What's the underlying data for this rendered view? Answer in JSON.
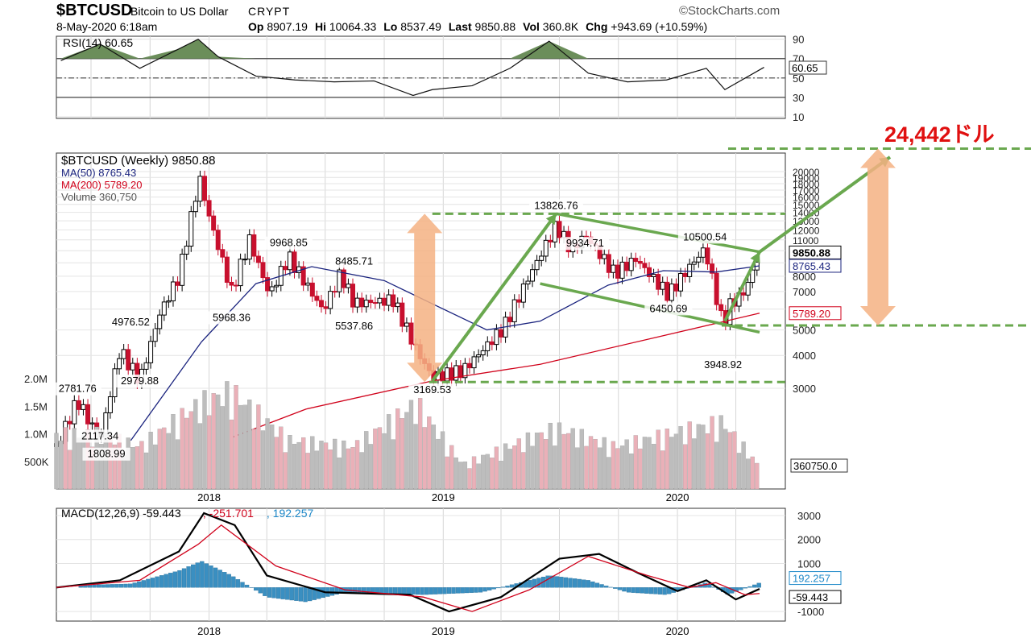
{
  "header": {
    "symbol": "$BTCUSD",
    "name": "Bitcoin to US Dollar",
    "exchange": "CRYPT",
    "brand": "©StockCharts.com",
    "datetime": "8-May-2020 6:18am",
    "ohlc": [
      {
        "label": "Op",
        "value": "8907.19"
      },
      {
        "label": "Hi",
        "value": "10064.33"
      },
      {
        "label": "Lo",
        "value": "8537.49"
      },
      {
        "label": "Last",
        "value": "9850.88"
      },
      {
        "label": "Vol",
        "value": "360.8K"
      },
      {
        "label": "Chg",
        "value": "+943.69 (+10.59%)"
      }
    ]
  },
  "chart_data": [
    {
      "type": "line",
      "panel": "rsi",
      "legend": "RSI(14) 60.65",
      "y_ticks": [
        10,
        30,
        50,
        70,
        90
      ],
      "ylim": [
        0,
        100
      ],
      "reference_lines": [
        30,
        50,
        70
      ],
      "current_label": "60.65",
      "x_dates": [
        "2017-05",
        "2017-07",
        "2017-09",
        "2017-11",
        "2017-12",
        "2018-01",
        "2018-03",
        "2018-05",
        "2018-07",
        "2018-09",
        "2018-11",
        "2018-12",
        "2019-02",
        "2019-04",
        "2019-06",
        "2019-08",
        "2019-10",
        "2019-12",
        "2020-02",
        "2020-03",
        "2020-05"
      ],
      "values": [
        68,
        85,
        60,
        80,
        90,
        72,
        52,
        48,
        46,
        47,
        32,
        38,
        42,
        60,
        88,
        55,
        46,
        48,
        60,
        38,
        61
      ]
    },
    {
      "type": "candlestick",
      "panel": "price",
      "scale": "log",
      "legend": [
        {
          "text": "$BTCUSD (Weekly) 9850.88",
          "color": "#000000"
        },
        {
          "text": "MA(50) 8765.43",
          "color": "#1a237e"
        },
        {
          "text": "MA(200) 5789.20",
          "color": "#d0021b"
        },
        {
          "text": "Volume 360,750",
          "color": "#555555"
        }
      ],
      "y_ticks": [
        3000,
        4000,
        5000,
        6000,
        7000,
        8000,
        9000,
        10000,
        11000,
        12000,
        13000,
        14000,
        15000,
        16000,
        17000,
        18000,
        19000,
        20000
      ],
      "y_tick_labels": [
        "3000",
        "4000",
        "5000",
        "6000",
        "7000",
        "8000",
        "9000",
        "10000",
        "11000",
        "12000",
        "13000",
        "14000",
        "15000",
        "16000",
        "17000",
        "18000",
        "19000",
        "20000"
      ],
      "x_tick_labels": [
        "2018",
        "2019",
        "2020"
      ],
      "price_path": [
        {
          "date": "2017-05-08",
          "close": 1800
        },
        {
          "date": "2017-06-10",
          "close": 2700
        },
        {
          "date": "2017-07-15",
          "close": 1900
        },
        {
          "date": "2017-08-15",
          "close": 4200
        },
        {
          "date": "2017-09-15",
          "close": 3200
        },
        {
          "date": "2017-10-15",
          "close": 5700
        },
        {
          "date": "2017-11-15",
          "close": 8000
        },
        {
          "date": "2017-12-17",
          "close": 19000
        },
        {
          "date": "2018-01-01",
          "close": 13500
        },
        {
          "date": "2018-02-05",
          "close": 7000
        },
        {
          "date": "2018-03-05",
          "close": 11000
        },
        {
          "date": "2018-04-05",
          "close": 6800
        },
        {
          "date": "2018-05-05",
          "close": 9500
        },
        {
          "date": "2018-06-28",
          "close": 5900
        },
        {
          "date": "2018-07-25",
          "close": 8200
        },
        {
          "date": "2018-08-15",
          "close": 6300
        },
        {
          "date": "2018-10-15",
          "close": 6500
        },
        {
          "date": "2018-11-20",
          "close": 4200
        },
        {
          "date": "2018-12-15",
          "close": 3300
        },
        {
          "date": "2019-02-01",
          "close": 3500
        },
        {
          "date": "2019-04-05",
          "close": 5100
        },
        {
          "date": "2019-05-15",
          "close": 8000
        },
        {
          "date": "2019-06-26",
          "close": 12500
        },
        {
          "date": "2019-07-20",
          "close": 10000
        },
        {
          "date": "2019-08-10",
          "close": 11500
        },
        {
          "date": "2019-09-25",
          "close": 8200
        },
        {
          "date": "2019-10-28",
          "close": 9300
        },
        {
          "date": "2019-12-18",
          "close": 6800
        },
        {
          "date": "2020-01-20",
          "close": 8700
        },
        {
          "date": "2020-02-13",
          "close": 10200
        },
        {
          "date": "2020-03-12",
          "close": 5200
        },
        {
          "date": "2020-03-22",
          "close": 6200
        },
        {
          "date": "2020-04-15",
          "close": 7000
        },
        {
          "date": "2020-05-08",
          "close": 9850
        }
      ],
      "ma50": [
        {
          "date": "2017-09-01",
          "close": 1900
        },
        {
          "date": "2017-12-20",
          "close": 4500
        },
        {
          "date": "2018-03-15",
          "close": 7500
        },
        {
          "date": "2018-06-10",
          "close": 8700
        },
        {
          "date": "2018-10-01",
          "close": 7700
        },
        {
          "date": "2018-12-20",
          "close": 6200
        },
        {
          "date": "2019-03-10",
          "close": 5000
        },
        {
          "date": "2019-06-01",
          "close": 5400
        },
        {
          "date": "2019-09-15",
          "close": 7400
        },
        {
          "date": "2019-12-10",
          "close": 8400
        },
        {
          "date": "2020-03-01",
          "close": 8300
        },
        {
          "date": "2020-05-08",
          "close": 8765.43
        }
      ],
      "ma200": [
        {
          "date": "2018-02-05",
          "close": 1950
        },
        {
          "date": "2018-06-01",
          "close": 2500
        },
        {
          "date": "2018-12-15",
          "close": 3200
        },
        {
          "date": "2019-06-01",
          "close": 3700
        },
        {
          "date": "2019-12-01",
          "close": 4700
        },
        {
          "date": "2020-05-08",
          "close": 5789.2
        }
      ],
      "annotations": [
        {
          "date": "2017-06-10",
          "price": 2781.76,
          "text": "2781.76"
        },
        {
          "date": "2017-07-15",
          "price": 2117.34,
          "text": "2117.34"
        },
        {
          "date": "2017-07-25",
          "price": 1808.99,
          "text": "1808.99"
        },
        {
          "date": "2017-09-15",
          "price": 2979.88,
          "text": "2979.88"
        },
        {
          "date": "2017-09-01",
          "price": 4976.52,
          "text": "4976.52"
        },
        {
          "date": "2018-02-05",
          "price": 5968.36,
          "text": "5968.36"
        },
        {
          "date": "2018-05-05",
          "price": 9968.85,
          "text": "9968.85"
        },
        {
          "date": "2018-08-15",
          "price": 8485.71,
          "text": "8485.71"
        },
        {
          "date": "2018-08-15",
          "price": 5537.86,
          "text": "5537.86"
        },
        {
          "date": "2018-12-15",
          "price": 3169.53,
          "text": "3169.53"
        },
        {
          "date": "2019-06-26",
          "price": 13826.76,
          "text": "13826.76"
        },
        {
          "date": "2019-08-10",
          "price": 9934.71,
          "text": "9934.71"
        },
        {
          "date": "2019-12-18",
          "price": 6450.69,
          "text": "6450.69"
        },
        {
          "date": "2020-02-13",
          "price": 10500.54,
          "text": "10500.54"
        },
        {
          "date": "2020-03-12",
          "price": 3948.92,
          "text": "3948.92"
        }
      ],
      "current_labels": [
        {
          "text": "9850.88",
          "value": 9850.88,
          "color": "#000000"
        },
        {
          "text": "8765.43",
          "value": 8765.43,
          "color": "#1a237e"
        },
        {
          "text": "5789.20",
          "value": 5789.2,
          "color": "#d0021b"
        }
      ],
      "overlay": {
        "target_text": "24,442ドル",
        "target_value": 24442,
        "range_levels": [
          13826.76,
          3169.53,
          5200
        ],
        "channel_lines": [
          {
            "from": {
              "date": "2019-06-26",
              "price": 13826.76
            },
            "to": {
              "date": "2020-05-08",
              "price": 9900
            }
          },
          {
            "from": {
              "date": "2019-06-01",
              "price": 7500
            },
            "to": {
              "date": "2020-05-08",
              "price": 4900
            }
          }
        ],
        "arrows": [
          {
            "from": {
              "date": "2018-12-15",
              "price": 3200
            },
            "to": {
              "date": "2019-06-26",
              "price": 13826.76
            }
          },
          {
            "from": {
              "date": "2020-03-15",
              "price": 5400
            },
            "to": {
              "date": "2020-05-08",
              "price": 9900
            }
          },
          {
            "from": {
              "date": "2020-05-08",
              "price": 9900
            },
            "to": {
              "date": "2020-07-10",
              "price": 23500
            }
          }
        ]
      }
    },
    {
      "type": "bar",
      "panel": "volume",
      "y_tick_labels": [
        "500K",
        "1.0M",
        "1.5M",
        "2.0M"
      ],
      "y_ticks": [
        500000,
        1000000,
        1500000,
        2000000
      ],
      "current_label": "360750.0",
      "bars": [
        {
          "date": "2017-07-15",
          "value": 900000
        },
        {
          "date": "2017-09-15",
          "value": 700000
        },
        {
          "date": "2017-12-17",
          "value": 1400000
        },
        {
          "date": "2018-02-05",
          "value": 1600000
        },
        {
          "date": "2018-05-05",
          "value": 800000
        },
        {
          "date": "2018-08-15",
          "value": 700000
        },
        {
          "date": "2018-11-20",
          "value": 1400000
        },
        {
          "date": "2019-02-01",
          "value": 400000
        },
        {
          "date": "2019-06-26",
          "value": 1000000
        },
        {
          "date": "2019-09-25",
          "value": 700000
        },
        {
          "date": "2020-03-12",
          "value": 1100000
        },
        {
          "date": "2020-05-08",
          "value": 360750
        }
      ]
    },
    {
      "type": "line",
      "panel": "macd",
      "legend": [
        {
          "text": "MACD(12,26,9) -59.443",
          "color": "#000000"
        },
        {
          "text": "-251.701",
          "color": "#d0021b"
        },
        {
          "text": "192.257",
          "color": "#1e88c8"
        }
      ],
      "y_ticks": [
        -1000,
        1000,
        2000,
        3000
      ],
      "ylim": [
        -1300,
        3200
      ],
      "x_tick_labels": [
        "2018",
        "2019",
        "2020"
      ],
      "current_labels": [
        {
          "text": "192.257",
          "value": 192.257,
          "color": "#1e88c8"
        },
        {
          "text": "-59.443",
          "value": -59.443,
          "color": "#000000"
        }
      ],
      "series": [
        {
          "name": "MACD",
          "color": "#000000",
          "points": [
            {
              "date": "2017-05-08",
              "value": 0
            },
            {
              "date": "2017-08-15",
              "value": 300
            },
            {
              "date": "2017-11-15",
              "value": 1500
            },
            {
              "date": "2017-12-24",
              "value": 3100
            },
            {
              "date": "2018-02-10",
              "value": 2600
            },
            {
              "date": "2018-04-01",
              "value": 500
            },
            {
              "date": "2018-07-01",
              "value": -200
            },
            {
              "date": "2018-11-10",
              "value": -300
            },
            {
              "date": "2019-01-10",
              "value": -1000
            },
            {
              "date": "2019-04-01",
              "value": -400
            },
            {
              "date": "2019-07-01",
              "value": 1200
            },
            {
              "date": "2019-09-01",
              "value": 1400
            },
            {
              "date": "2019-11-01",
              "value": 600
            },
            {
              "date": "2020-01-01",
              "value": -150
            },
            {
              "date": "2020-02-15",
              "value": 300
            },
            {
              "date": "2020-04-01",
              "value": -500
            },
            {
              "date": "2020-05-08",
              "value": -59.443
            }
          ]
        },
        {
          "name": "Signal",
          "color": "#d0021b",
          "points": [
            {
              "date": "2017-05-08",
              "value": 0
            },
            {
              "date": "2017-09-15",
              "value": 300
            },
            {
              "date": "2017-12-15",
              "value": 1800
            },
            {
              "date": "2018-01-20",
              "value": 2600
            },
            {
              "date": "2018-04-15",
              "value": 900
            },
            {
              "date": "2018-08-01",
              "value": -100
            },
            {
              "date": "2018-12-01",
              "value": -400
            },
            {
              "date": "2019-02-15",
              "value": -1000
            },
            {
              "date": "2019-05-15",
              "value": -100
            },
            {
              "date": "2019-08-15",
              "value": 1300
            },
            {
              "date": "2019-11-15",
              "value": 500
            },
            {
              "date": "2020-01-20",
              "value": 0
            },
            {
              "date": "2020-03-01",
              "value": 200
            },
            {
              "date": "2020-04-15",
              "value": -300
            },
            {
              "date": "2020-05-08",
              "value": -251.701
            }
          ]
        }
      ],
      "histogram": [
        {
          "date": "2017-06-15",
          "value": 100
        },
        {
          "date": "2017-09-01",
          "value": 150
        },
        {
          "date": "2017-11-15",
          "value": 700
        },
        {
          "date": "2017-12-20",
          "value": 1100
        },
        {
          "date": "2018-02-05",
          "value": 500
        },
        {
          "date": "2018-04-01",
          "value": -400
        },
        {
          "date": "2018-06-01",
          "value": -600
        },
        {
          "date": "2018-08-01",
          "value": -200
        },
        {
          "date": "2018-12-01",
          "value": -300
        },
        {
          "date": "2019-03-01",
          "value": -200
        },
        {
          "date": "2019-06-15",
          "value": 500
        },
        {
          "date": "2019-08-15",
          "value": 300
        },
        {
          "date": "2019-10-15",
          "value": -200
        },
        {
          "date": "2019-12-15",
          "value": -300
        },
        {
          "date": "2020-02-15",
          "value": 200
        },
        {
          "date": "2020-03-20",
          "value": -300
        },
        {
          "date": "2020-05-08",
          "value": 192.257
        }
      ]
    }
  ]
}
